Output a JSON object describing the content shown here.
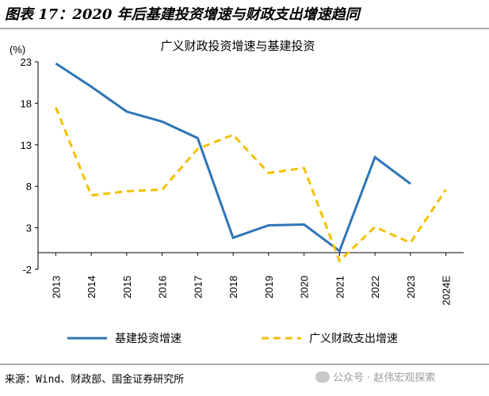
{
  "figure_title": "图表 17：2020 年后基建投资增速与财政支出增速趋同",
  "source": "来源：Wind、财政部、国金证券研究所",
  "watermark": "公众号 · 赵伟宏观探索",
  "chart_data": {
    "type": "line",
    "title": "广义财政投资增速与基建投资",
    "unit_label": "(%)",
    "xlabel": "",
    "ylabel": "",
    "ylim": [
      -2,
      23
    ],
    "yticks": [
      -2,
      3,
      8,
      13,
      18,
      23
    ],
    "categories": [
      "2013",
      "2014",
      "2015",
      "2016",
      "2017",
      "2018",
      "2019",
      "2020",
      "2021",
      "2022",
      "2023",
      "2024E"
    ],
    "grid": false,
    "legend_position": "bottom",
    "series": [
      {
        "name": "基建投资增速",
        "color": "#2e75b6",
        "style": "solid",
        "values": [
          22.8,
          20.0,
          17.0,
          15.8,
          13.8,
          1.8,
          3.3,
          3.4,
          0.2,
          11.5,
          8.3,
          null
        ]
      },
      {
        "name": "广义财政支出增速",
        "color": "#f5c000",
        "style": "dashed",
        "values": [
          17.5,
          6.9,
          7.4,
          7.6,
          12.5,
          14.2,
          9.6,
          10.2,
          -1.0,
          3.1,
          1.2,
          7.6
        ]
      }
    ]
  }
}
